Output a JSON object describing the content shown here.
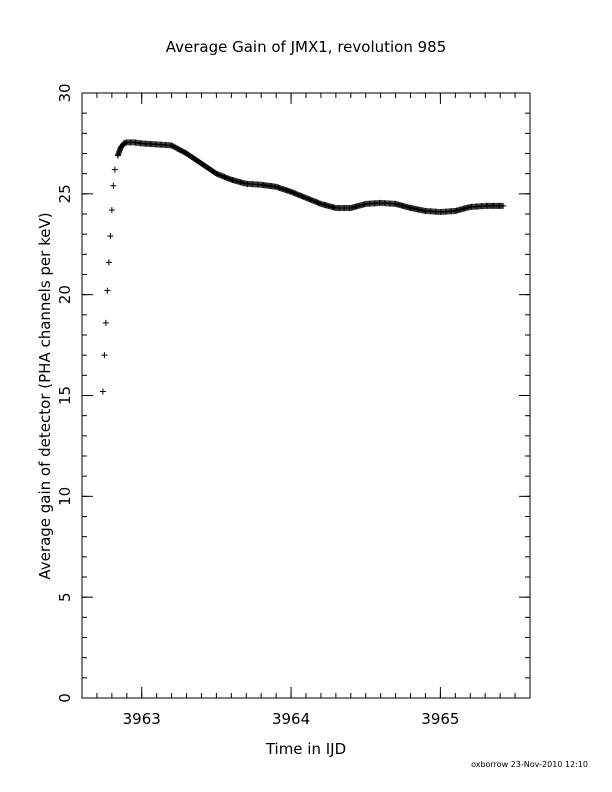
{
  "chart_data": {
    "type": "scatter",
    "title": "Average Gain of JMX1, revolution 985",
    "xlabel": "Time in IJD",
    "ylabel": "Average gain of detector (PHA channels per keV)",
    "xlim": [
      3962.6,
      3965.6
    ],
    "ylim": [
      0,
      30
    ],
    "x_ticks": [
      3963,
      3964,
      3965
    ],
    "x_tick_labels": [
      "3963",
      "3964",
      "3965"
    ],
    "y_ticks": [
      0,
      5,
      10,
      15,
      20,
      25,
      30
    ],
    "y_tick_labels": [
      "0",
      "5",
      "10",
      "15",
      "20",
      "25",
      "30"
    ],
    "marker": "+",
    "grid": false,
    "series": [
      {
        "x": [
          3962.74,
          3962.75,
          3962.76,
          3962.77,
          3962.78,
          3962.79,
          3962.8,
          3962.81,
          3962.82,
          3962.84,
          3962.86,
          3962.88,
          3962.9,
          3962.95,
          3963.0,
          3963.1,
          3963.2,
          3963.3,
          3963.4,
          3963.5,
          3963.6,
          3963.7,
          3963.8,
          3963.9,
          3964.0,
          3964.1,
          3964.2,
          3964.3,
          3964.4,
          3964.5,
          3964.6,
          3964.7,
          3964.8,
          3964.9,
          3965.0,
          3965.1,
          3965.2,
          3965.3,
          3965.42
        ],
        "y": [
          15.2,
          17.0,
          18.6,
          20.2,
          21.6,
          22.9,
          24.2,
          25.4,
          26.2,
          26.9,
          27.3,
          27.5,
          27.55,
          27.55,
          27.5,
          27.45,
          27.4,
          27.0,
          26.5,
          26.0,
          25.7,
          25.5,
          25.45,
          25.35,
          25.1,
          24.8,
          24.5,
          24.3,
          24.3,
          24.5,
          24.55,
          24.5,
          24.3,
          24.15,
          24.1,
          24.15,
          24.35,
          24.4,
          24.4
        ]
      }
    ]
  },
  "footer": "oxborrow 23-Nov-2010 12:10"
}
